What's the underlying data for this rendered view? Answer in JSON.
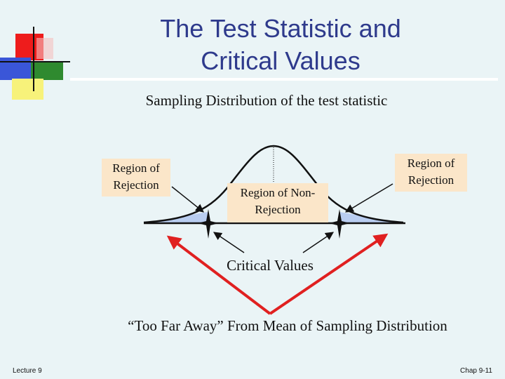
{
  "title": {
    "line1": "The Test Statistic and",
    "line2": "Critical Values"
  },
  "subtitle": "Sampling Distribution of the test statistic",
  "labels": {
    "rejection_left": "Region of Rejection",
    "non_rejection": "Region of Non-Rejection",
    "rejection_right": "Region of Rejection"
  },
  "critical_values": "Critical Values",
  "too_far": "“Too Far Away” From Mean of Sampling Distribution",
  "footer": {
    "left": "Lecture 9",
    "right": "Chap 9-11"
  },
  "colors": {
    "title": "#2e3a8c",
    "background": "#eaf4f6",
    "label_box": "#fbe6c9",
    "tail_fill": "#b9cdf0",
    "arrow_red": "#e02020"
  }
}
